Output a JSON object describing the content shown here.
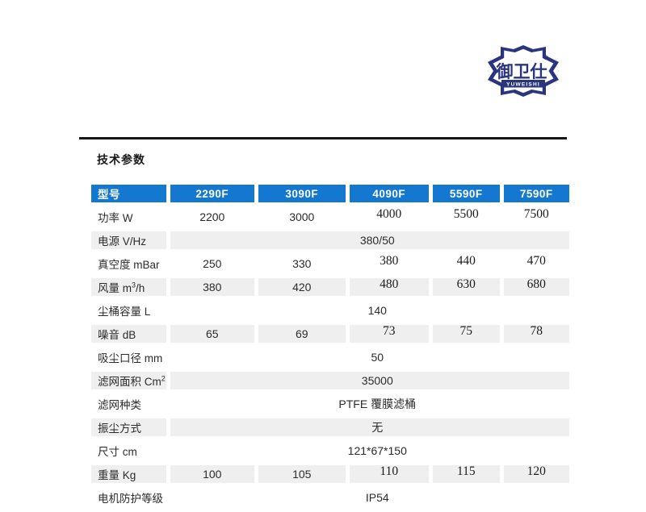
{
  "logo": {
    "chars": "御卫仕",
    "latin": "YUWEISHI",
    "registered": "®",
    "color": "#2b357e"
  },
  "section": {
    "title": "技术参数"
  },
  "table": {
    "header_bg": "#1478d1",
    "row_shade": "#efefef",
    "header": {
      "model_label": "型号",
      "models": [
        "2290F",
        "3090F",
        "4090F",
        "5590F",
        "7590F"
      ]
    },
    "rows": [
      {
        "label": "功率 W",
        "values": [
          "2200",
          "3000",
          "4000",
          "5500",
          "7500"
        ],
        "serif_from": 2,
        "shaded": false
      },
      {
        "label": "电源 V/Hz",
        "span": "380/50",
        "shaded": true
      },
      {
        "label": "真空度 mBar",
        "values": [
          "250",
          "330",
          "380",
          "440",
          "470"
        ],
        "serif_from": 2,
        "shaded": false
      },
      {
        "label": "风量 m",
        "label_sup": "3",
        "label_tail": "/h",
        "values": [
          "380",
          "420",
          "480",
          "630",
          "680"
        ],
        "serif_from": 2,
        "shaded": true
      },
      {
        "label": "尘桶容量 L",
        "span": "140",
        "shaded": false
      },
      {
        "label": "噪音 dB",
        "values": [
          "65",
          "69",
          "73",
          "75",
          "78"
        ],
        "serif_from": 2,
        "shaded": true
      },
      {
        "label": "吸尘口径 mm",
        "span": "50",
        "shaded": false
      },
      {
        "label": "滤网面积 Cm",
        "label_sup": "2",
        "span": "35000",
        "shaded": true
      },
      {
        "label": "滤网种类",
        "span": "PTFE 覆膜滤桶",
        "shaded": false
      },
      {
        "label": "振尘方式",
        "span": "无",
        "shaded": true
      },
      {
        "label": "尺寸 cm",
        "span": "121*67*150",
        "shaded": false
      },
      {
        "label": "重量 Kg",
        "values": [
          "100",
          "105",
          "110",
          "115",
          "120"
        ],
        "serif_from": 2,
        "shaded": true
      },
      {
        "label": "电机防护等级",
        "span": "IP54",
        "shaded": false
      }
    ]
  }
}
